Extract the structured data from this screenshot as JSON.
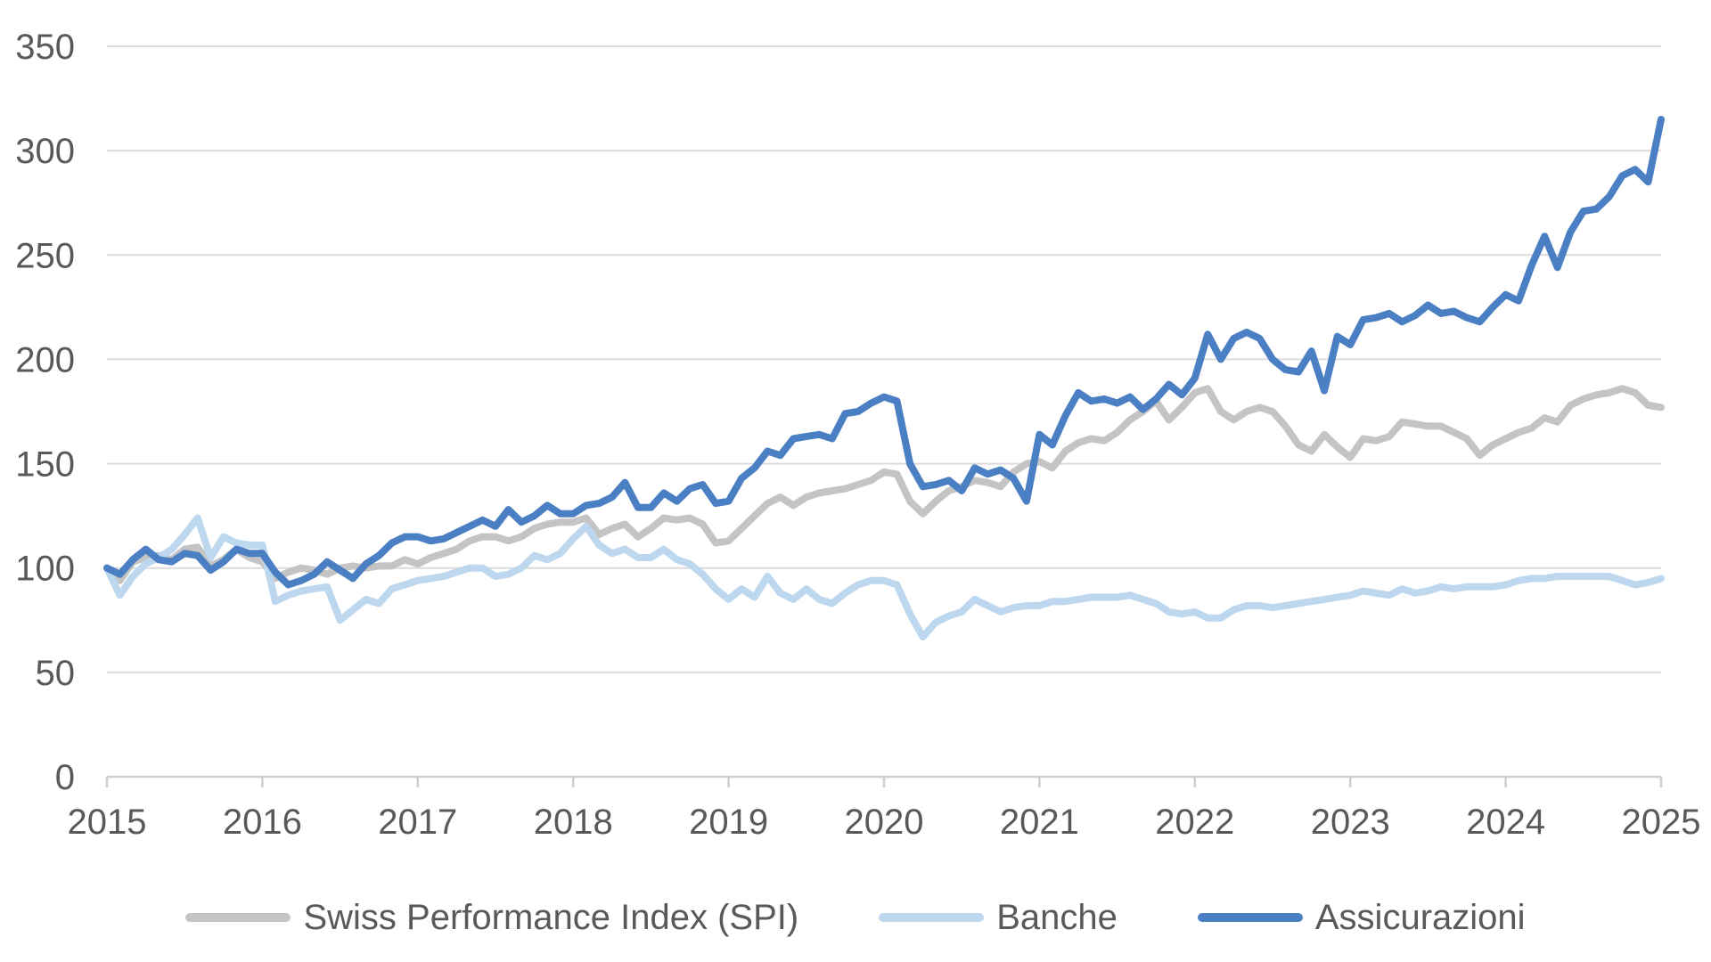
{
  "chart_data": {
    "type": "line",
    "title": "",
    "xlabel": "",
    "ylabel": "",
    "grid": "horizontal",
    "legend_position": "bottom",
    "background_color": "#ffffff",
    "gridline_color": "#dcdcdc",
    "axis_color": "#cfcfcf",
    "text_color": "#595959",
    "x_axis": {
      "ticks": [
        "2015",
        "2016",
        "2017",
        "2018",
        "2019",
        "2020",
        "2021",
        "2022",
        "2023",
        "2024",
        "2025"
      ],
      "frequency": "monthly",
      "start": "2015-01",
      "end": "2025-01"
    },
    "y_axis": {
      "min": 0,
      "max": 350,
      "ticks": [
        0,
        50,
        100,
        150,
        200,
        250,
        300,
        350
      ]
    },
    "series": [
      {
        "id": "spi",
        "name": "Swiss Performance Index (SPI)",
        "color": "#c4c4c4",
        "values": [
          100,
          94,
          103,
          105,
          106,
          104,
          109,
          110,
          101,
          104,
          109,
          105,
          103,
          95,
          98,
          100,
          99,
          97,
          100,
          101,
          100,
          101,
          101,
          104,
          102,
          105,
          107,
          109,
          113,
          115,
          115,
          113,
          115,
          119,
          121,
          122,
          122,
          124,
          116,
          119,
          121,
          115,
          119,
          124,
          123,
          124,
          121,
          112,
          113,
          119,
          125,
          131,
          134,
          130,
          134,
          136,
          137,
          138,
          140,
          142,
          146,
          145,
          132,
          126,
          132,
          137,
          139,
          142,
          141,
          139,
          146,
          150,
          151,
          148,
          156,
          160,
          162,
          161,
          165,
          171,
          175,
          180,
          171,
          177,
          184,
          186,
          175,
          171,
          175,
          177,
          175,
          168,
          159,
          156,
          164,
          158,
          153,
          162,
          161,
          163,
          170,
          169,
          168,
          168,
          165,
          162,
          154,
          159,
          162,
          165,
          167,
          172,
          170,
          178,
          181,
          183,
          184,
          186,
          184,
          178,
          177
        ]
      },
      {
        "id": "banche",
        "name": "Banche",
        "color": "#bdd7ee",
        "values": [
          100,
          87,
          96,
          102,
          105,
          109,
          116,
          124,
          105,
          115,
          112,
          111,
          111,
          84,
          87,
          89,
          90,
          91,
          75,
          80,
          85,
          83,
          90,
          92,
          94,
          95,
          96,
          98,
          100,
          100,
          96,
          97,
          100,
          106,
          104,
          107,
          114,
          120,
          111,
          107,
          109,
          105,
          105,
          109,
          104,
          102,
          97,
          90,
          85,
          90,
          86,
          96,
          88,
          85,
          90,
          85,
          83,
          88,
          92,
          94,
          94,
          92,
          78,
          67,
          74,
          77,
          79,
          85,
          82,
          79,
          81,
          82,
          82,
          84,
          84,
          85,
          86,
          86,
          86,
          87,
          85,
          83,
          79,
          78,
          79,
          76,
          76,
          80,
          82,
          82,
          81,
          82,
          83,
          84,
          85,
          86,
          87,
          89,
          88,
          87,
          90,
          88,
          89,
          91,
          90,
          91,
          91,
          91,
          92,
          94,
          95,
          95,
          96,
          96,
          96,
          96,
          96,
          94,
          92,
          93,
          95
        ]
      },
      {
        "id": "assicurazioni",
        "name": "Assicurazioni",
        "color": "#4b7fc4",
        "values": [
          100,
          97,
          104,
          109,
          104,
          103,
          107,
          106,
          99,
          103,
          109,
          107,
          107,
          98,
          92,
          94,
          97,
          103,
          99,
          95,
          102,
          106,
          112,
          115,
          115,
          113,
          114,
          117,
          120,
          123,
          120,
          128,
          122,
          125,
          130,
          126,
          126,
          130,
          131,
          134,
          141,
          129,
          129,
          136,
          132,
          138,
          140,
          131,
          132,
          143,
          148,
          156,
          154,
          162,
          163,
          164,
          162,
          174,
          175,
          179,
          182,
          180,
          150,
          139,
          140,
          142,
          137,
          148,
          145,
          147,
          143,
          132,
          164,
          159,
          173,
          184,
          180,
          181,
          179,
          182,
          176,
          181,
          188,
          183,
          191,
          212,
          200,
          210,
          213,
          210,
          200,
          195,
          194,
          204,
          185,
          211,
          207,
          219,
          220,
          222,
          218,
          221,
          226,
          222,
          223,
          220,
          218,
          225,
          231,
          228,
          245,
          259,
          244,
          261,
          271,
          272,
          278,
          288,
          291,
          285,
          315
        ]
      }
    ]
  }
}
